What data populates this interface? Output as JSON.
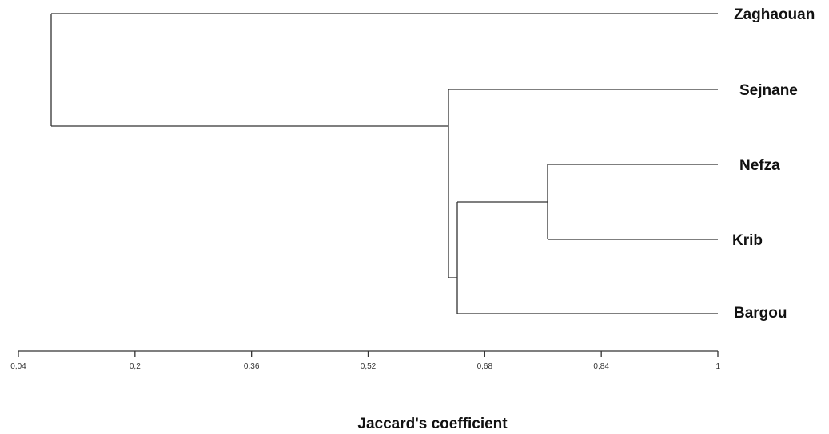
{
  "chart_data": {
    "type": "dendrogram",
    "xlabel": "Jaccard's coefficient",
    "xlim": [
      0.04,
      1
    ],
    "ticks": [
      "0,04",
      "0,2",
      "0,36",
      "0,52",
      "0,68",
      "0,84",
      "1"
    ],
    "tick_values": [
      0.04,
      0.2,
      0.36,
      0.52,
      0.68,
      0.84,
      1
    ],
    "leaves": [
      "Zaghaouan",
      "Sejnane",
      "Nefza",
      "Krib",
      "Bargou"
    ],
    "merges": [
      {
        "children": [
          "Nefza",
          "Krib"
        ],
        "height": 0.75
      },
      {
        "children": [
          "Nefza+Krib",
          "Bargou"
        ],
        "height": 0.64
      },
      {
        "children": [
          "Sejnane",
          "Nefza+Krib+Bargou"
        ],
        "height": 0.63
      },
      {
        "children": [
          "Zaghaouan",
          "Sejnane+Nefza+Krib+Bargou"
        ],
        "height": 0.085
      }
    ],
    "colors": {
      "lines": "#333333",
      "text": "#111111"
    }
  }
}
